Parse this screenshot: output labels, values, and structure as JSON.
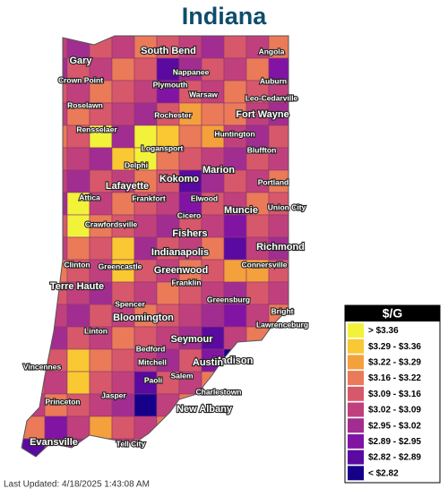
{
  "title": "Indiana",
  "cities": [
    {
      "name": "Gary",
      "major": true
    },
    {
      "name": "Crown Point",
      "major": false
    },
    {
      "name": "South Bend",
      "major": true
    },
    {
      "name": "Angola",
      "major": false
    },
    {
      "name": "Nappanee",
      "major": false
    },
    {
      "name": "Plymouth",
      "major": false
    },
    {
      "name": "Auburn",
      "major": false
    },
    {
      "name": "Warsaw",
      "major": false
    },
    {
      "name": "Leo-Cedarville",
      "major": false
    },
    {
      "name": "Roselawn",
      "major": false
    },
    {
      "name": "Rochester",
      "major": false
    },
    {
      "name": "Fort Wayne",
      "major": true
    },
    {
      "name": "Rensselaer",
      "major": false
    },
    {
      "name": "Huntington",
      "major": false
    },
    {
      "name": "Logansport",
      "major": false
    },
    {
      "name": "Bluffton",
      "major": false
    },
    {
      "name": "Delphi",
      "major": false
    },
    {
      "name": "Marion",
      "major": true
    },
    {
      "name": "Kokomo",
      "major": true
    },
    {
      "name": "Lafayette",
      "major": true
    },
    {
      "name": "Portland",
      "major": false
    },
    {
      "name": "Attica",
      "major": false
    },
    {
      "name": "Frankfort",
      "major": false
    },
    {
      "name": "Elwood",
      "major": false
    },
    {
      "name": "Union City",
      "major": false
    },
    {
      "name": "Muncie",
      "major": true
    },
    {
      "name": "Cicero",
      "major": false
    },
    {
      "name": "Crawfordsville",
      "major": false
    },
    {
      "name": "Fishers",
      "major": true
    },
    {
      "name": "Indianapolis",
      "major": true
    },
    {
      "name": "Richmond",
      "major": true
    },
    {
      "name": "Clinton",
      "major": false
    },
    {
      "name": "Greencastle",
      "major": false
    },
    {
      "name": "Greenwood",
      "major": true
    },
    {
      "name": "Connersville",
      "major": false
    },
    {
      "name": "Terre Haute",
      "major": true
    },
    {
      "name": "Franklin",
      "major": false
    },
    {
      "name": "Spencer",
      "major": false
    },
    {
      "name": "Greensburg",
      "major": false
    },
    {
      "name": "Bloomington",
      "major": true
    },
    {
      "name": "Bright",
      "major": false
    },
    {
      "name": "Lawrenceburg",
      "major": false
    },
    {
      "name": "Linton",
      "major": false
    },
    {
      "name": "Seymour",
      "major": true
    },
    {
      "name": "Bedford",
      "major": false
    },
    {
      "name": "Mitchell",
      "major": false
    },
    {
      "name": "Madison",
      "major": true
    },
    {
      "name": "Vincennes",
      "major": false
    },
    {
      "name": "Austin",
      "major": true
    },
    {
      "name": "Salem",
      "major": false
    },
    {
      "name": "Paoli",
      "major": false
    },
    {
      "name": "Charlestown",
      "major": false
    },
    {
      "name": "Princeton",
      "major": false
    },
    {
      "name": "Jasper",
      "major": false
    },
    {
      "name": "New Albany",
      "major": true
    },
    {
      "name": "Evansville",
      "major": true
    },
    {
      "name": "Tell City",
      "major": false
    }
  ],
  "legend": {
    "title": "$/G",
    "items": [
      {
        "label": "> $3.36",
        "color": "#f2f23a"
      },
      {
        "label": "$3.29 - $3.36",
        "color": "#f9c832"
      },
      {
        "label": "$3.22 - $3.29",
        "color": "#f4a03c"
      },
      {
        "label": "$3.16 - $3.22",
        "color": "#ea7a58"
      },
      {
        "label": "$3.09 - $3.16",
        "color": "#d7586b"
      },
      {
        "label": "$3.02 - $3.09",
        "color": "#c0407d"
      },
      {
        "label": "$2.95 - $3.02",
        "color": "#a22d91"
      },
      {
        "label": "$2.89 - $2.95",
        "color": "#8214a4"
      },
      {
        "label": "$2.82 - $2.89",
        "color": "#5a0aa0"
      },
      {
        "label": "< $2.82",
        "color": "#16008a"
      }
    ]
  },
  "last_updated": "Last Updated: 4/18/2025 1:43:08 AM"
}
